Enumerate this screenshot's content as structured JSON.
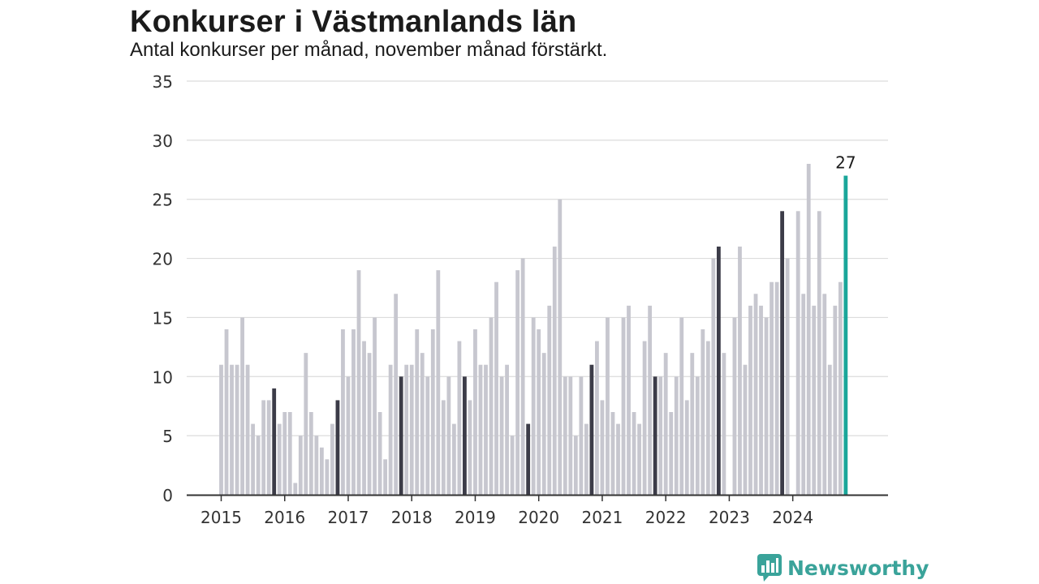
{
  "chart_data": {
    "type": "bar",
    "title": "Konkurser i Västmanlands län",
    "subtitle": "Antal konkurser per månad, november månad förstärkt.",
    "ylim": [
      0,
      35
    ],
    "yticks": [
      0,
      5,
      10,
      15,
      20,
      25,
      30,
      35
    ],
    "x_tick_labels": [
      "2015",
      "2016",
      "2017",
      "2018",
      "2019",
      "2020",
      "2021",
      "2022",
      "2023",
      "2024"
    ],
    "grid": true,
    "highlight_month": "november",
    "values": [
      11,
      14,
      11,
      11,
      15,
      11,
      6,
      5,
      8,
      8,
      9,
      6,
      7,
      7,
      1,
      5,
      12,
      7,
      5,
      4,
      3,
      6,
      8,
      14,
      10,
      14,
      19,
      13,
      12,
      15,
      7,
      3,
      11,
      17,
      10,
      11,
      11,
      14,
      12,
      10,
      14,
      19,
      8,
      10,
      6,
      13,
      10,
      8,
      14,
      11,
      11,
      15,
      18,
      10,
      11,
      5,
      19,
      20,
      6,
      15,
      14,
      12,
      16,
      21,
      25,
      10,
      10,
      5,
      10,
      6,
      11,
      13,
      8,
      15,
      7,
      6,
      15,
      16,
      7,
      6,
      13,
      16,
      10,
      10,
      12,
      7,
      10,
      15,
      8,
      12,
      10,
      14,
      13,
      20,
      21,
      12,
      0,
      15,
      21,
      11,
      16,
      17,
      16,
      15,
      18,
      18,
      24,
      20,
      0,
      24,
      17,
      28,
      16,
      24,
      17,
      11,
      16,
      18,
      27
    ],
    "last_value_label": "27",
    "colors": {
      "default": "#c7c7cf",
      "november": "#3c3c48",
      "latest": "#1aa69a",
      "grid": "#dcdcdc",
      "axis": "#333333",
      "text": "#333333"
    }
  },
  "brand": {
    "name": "Newsworthy",
    "icon": "bar-chart-speech-bubble-icon",
    "color": "#3aa39a"
  }
}
